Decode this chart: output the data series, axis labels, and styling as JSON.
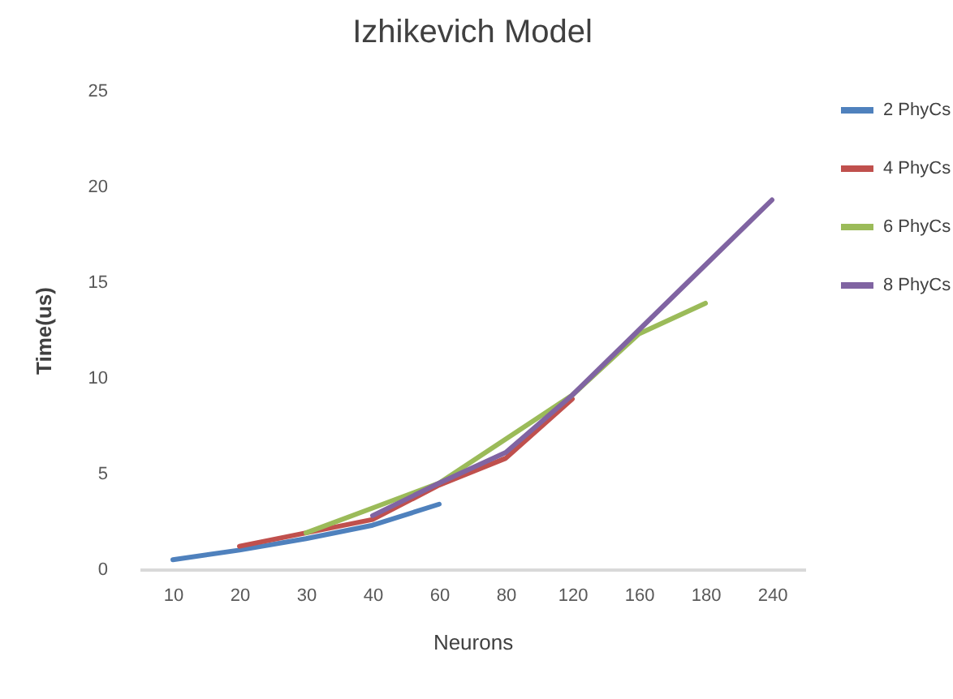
{
  "chart_data": {
    "type": "line",
    "title": "Izhikevich Model",
    "xlabel": "Neurons",
    "ylabel": "Time(us)",
    "categories": [
      "10",
      "20",
      "30",
      "40",
      "60",
      "80",
      "120",
      "160",
      "180",
      "240"
    ],
    "series": [
      {
        "name": "2 PhyCs",
        "color": "#4f81bd",
        "values": [
          0.5,
          1.0,
          1.6,
          2.3,
          3.4,
          null,
          null,
          null,
          null,
          null
        ]
      },
      {
        "name": "4 PhyCs",
        "color": "#c0504d",
        "values": [
          null,
          1.2,
          1.9,
          2.6,
          4.4,
          5.8,
          8.9,
          null,
          null,
          null
        ]
      },
      {
        "name": "6 PhyCs",
        "color": "#9bbb59",
        "values": [
          null,
          null,
          1.9,
          3.2,
          4.5,
          6.8,
          9.1,
          12.3,
          13.9,
          null
        ]
      },
      {
        "name": "8 PhyCs",
        "color": "#8064a2",
        "values": [
          null,
          null,
          null,
          2.8,
          4.5,
          6.1,
          9.1,
          12.5,
          15.9,
          19.3
        ]
      }
    ],
    "ylim": [
      0,
      25
    ],
    "yticks": [
      0,
      5,
      10,
      15,
      20,
      25
    ],
    "grid": false,
    "legend": "right",
    "marker": "none",
    "line_style": "solid"
  }
}
